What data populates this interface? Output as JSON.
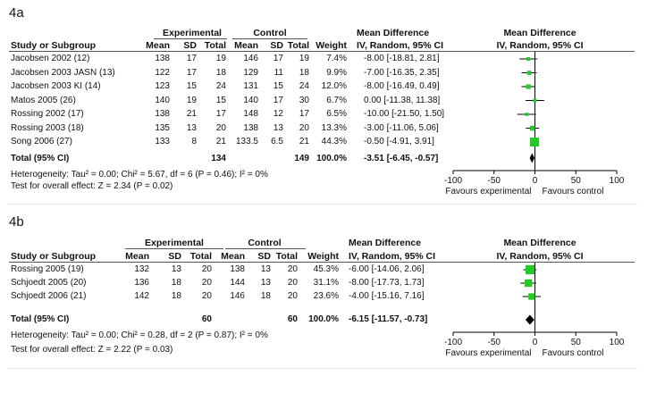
{
  "chart_data": [
    {
      "type": "table",
      "panel_label": "4a",
      "headers": {
        "experimental": "Experimental",
        "control": "Control",
        "md_top": "Mean Difference",
        "md_bottom": "IV, Random, 95% CI",
        "plot_top": "Mean Difference",
        "plot_bottom": "IV, Random, 95% CI",
        "study": "Study or Subgroup",
        "mean": "Mean",
        "sd": "SD",
        "total": "Total",
        "weight": "Weight"
      },
      "studies": [
        {
          "name": "Jacobsen 2002 (12)",
          "e_mean": "138",
          "e_sd": "17",
          "e_total": "19",
          "c_mean": "146",
          "c_sd": "17",
          "c_total": "19",
          "weight": "7.4%",
          "ci_text": "-8.00 [-18.81, 2.81]",
          "md": -8.0,
          "lo": -18.81,
          "hi": 2.81,
          "w": 7.4
        },
        {
          "name": "Jacobsen 2003 JASN (13)",
          "e_mean": "122",
          "e_sd": "17",
          "e_total": "18",
          "c_mean": "129",
          "c_sd": "11",
          "c_total": "18",
          "weight": "9.9%",
          "ci_text": "-7.00 [-16.35, 2.35]",
          "md": -7.0,
          "lo": -16.35,
          "hi": 2.35,
          "w": 9.9
        },
        {
          "name": "Jacobsen 2003 KI (14)",
          "e_mean": "123",
          "e_sd": "15",
          "e_total": "24",
          "c_mean": "131",
          "c_sd": "15",
          "c_total": "24",
          "weight": "12.0%",
          "ci_text": "-8.00 [-16.49, 0.49]",
          "md": -8.0,
          "lo": -16.49,
          "hi": 0.49,
          "w": 12.0
        },
        {
          "name": "Matos 2005 (26)",
          "e_mean": "140",
          "e_sd": "19",
          "e_total": "15",
          "c_mean": "140",
          "c_sd": "17",
          "c_total": "30",
          "weight": "6.7%",
          "ci_text": "0.00 [-11.38, 11.38]",
          "md": 0.0,
          "lo": -11.38,
          "hi": 11.38,
          "w": 6.7
        },
        {
          "name": "Rossing 2002 (17)",
          "e_mean": "138",
          "e_sd": "21",
          "e_total": "17",
          "c_mean": "148",
          "c_sd": "12",
          "c_total": "17",
          "weight": "6.5%",
          "ci_text": "-10.00 [-21.50, 1.50]",
          "md": -10.0,
          "lo": -21.5,
          "hi": 1.5,
          "w": 6.5
        },
        {
          "name": "Rossing 2003 (18)",
          "e_mean": "135",
          "e_sd": "13",
          "e_total": "20",
          "c_mean": "138",
          "c_sd": "13",
          "c_total": "20",
          "weight": "13.3%",
          "ci_text": "-3.00 [-11.06, 5.06]",
          "md": -3.0,
          "lo": -11.06,
          "hi": 5.06,
          "w": 13.3
        },
        {
          "name": "Song 2006 (27)",
          "e_mean": "133",
          "e_sd": "8",
          "e_total": "21",
          "c_mean": "133.5",
          "c_sd": "6.5",
          "c_total": "21",
          "weight": "44.3%",
          "ci_text": "-0.50 [-4.91, 3.91]",
          "md": -0.5,
          "lo": -4.91,
          "hi": 3.91,
          "w": 44.3
        }
      ],
      "total": {
        "name": "Total (95% CI)",
        "e_total": "134",
        "c_total": "149",
        "weight": "100.0%",
        "ci_text": "-3.51 [-6.45, -0.57]",
        "md": -3.51,
        "lo": -6.45,
        "hi": -0.57
      },
      "heterogeneity": "Heterogeneity: Tau² = 0.00; Chi² = 5.67, df = 6 (P = 0.46); I² = 0%",
      "overall_effect": "Test for overall effect: Z = 2.34 (P = 0.02)",
      "axis": {
        "min": -100,
        "max": 100,
        "ticks": [
          "-100",
          "-50",
          "0",
          "50",
          "100"
        ],
        "tick_values": [
          -100,
          -50,
          0,
          50,
          100
        ]
      },
      "favours_left": "Favours experimental",
      "favours_right": "Favours control",
      "colors": {
        "square": "#22cc22",
        "diamond": "#000000",
        "whisker": "#000000"
      }
    },
    {
      "type": "table",
      "panel_label": "4b",
      "headers": {
        "experimental": "Experimental",
        "control": "Control",
        "md_top": "Mean Difference",
        "md_bottom": "IV, Random, 95% CI",
        "plot_top": "Mean Difference",
        "plot_bottom": "IV, Random, 95% CI",
        "study": "Study or Subgroup",
        "mean": "Mean",
        "sd": "SD",
        "total": "Total",
        "weight": "Weight"
      },
      "studies": [
        {
          "name": "Rossing 2005 (19)",
          "e_mean": "132",
          "e_sd": "13",
          "e_total": "20",
          "c_mean": "138",
          "c_sd": "13",
          "c_total": "20",
          "weight": "45.3%",
          "ci_text": "-6.00 [-14.06, 2.06]",
          "md": -6.0,
          "lo": -14.06,
          "hi": 2.06,
          "w": 45.3
        },
        {
          "name": "Schjoedt 2005 (20)",
          "e_mean": "136",
          "e_sd": "18",
          "e_total": "20",
          "c_mean": "144",
          "c_sd": "13",
          "c_total": "20",
          "weight": "31.1%",
          "ci_text": "-8.00 [-17.73, 1.73]",
          "md": -8.0,
          "lo": -17.73,
          "hi": 1.73,
          "w": 31.1
        },
        {
          "name": "Schjoedt 2006 (21)",
          "e_mean": "142",
          "e_sd": "18",
          "e_total": "20",
          "c_mean": "146",
          "c_sd": "18",
          "c_total": "20",
          "weight": "23.6%",
          "ci_text": "-4.00 [-15.16, 7.16]",
          "md": -4.0,
          "lo": -15.16,
          "hi": 7.16,
          "w": 23.6
        }
      ],
      "total": {
        "name": "Total (95% CI)",
        "e_total": "60",
        "c_total": "60",
        "weight": "100.0%",
        "ci_text": "-6.15 [-11.57, -0.73]",
        "md": -6.15,
        "lo": -11.57,
        "hi": -0.73
      },
      "heterogeneity": "Heterogeneity: Tau² = 0.00; Chi² = 0.28, df = 2 (P = 0.87); I² = 0%",
      "overall_effect": "Test for overall effect: Z = 2.22 (P = 0.03)",
      "axis": {
        "min": -100,
        "max": 100,
        "ticks": [
          "-100",
          "-50",
          "0",
          "50",
          "100"
        ],
        "tick_values": [
          -100,
          -50,
          0,
          50,
          100
        ]
      },
      "favours_left": "Favours experimental",
      "favours_right": "Favours control",
      "colors": {
        "square": "#22cc22",
        "diamond": "#000000",
        "whisker": "#000000"
      }
    }
  ]
}
